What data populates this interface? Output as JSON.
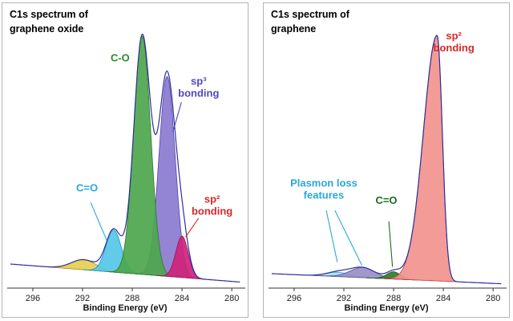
{
  "figure": {
    "background": "#ffffff",
    "border_color": "#b5b5b5"
  },
  "chart_data": [
    {
      "type": "area",
      "title": "C1s spectrum of graphene oxide",
      "xlabel": "Binding Energy (eV)",
      "x_ticks": [
        296,
        292,
        288,
        284,
        280
      ],
      "x_range": [
        297.8,
        279.3
      ],
      "x_reversed": true,
      "ylim": [
        0,
        1.1
      ],
      "grid": false,
      "envelope_color": "#2b2f9e",
      "baseline": {
        "left": 0.09,
        "right": 0.015
      },
      "peaks": [
        {
          "name": "satellite",
          "center": 291.9,
          "amp": 0.042,
          "sigma": 1.0,
          "fill": "#e7cf4f",
          "stroke": "#a08a20"
        },
        {
          "name": "C=O",
          "center": 289.5,
          "amp": 0.175,
          "sigma": 0.62,
          "fill": "#56c7e8",
          "stroke": "#1f93bd"
        },
        {
          "name": "sp3 bonding",
          "center": 285.2,
          "amp": 0.83,
          "sigma": 0.65,
          "fill": "#8a7bd0",
          "stroke": "#5347ad"
        },
        {
          "name": "C-O",
          "center": 287.2,
          "amp": 0.99,
          "sigma": 0.68,
          "fill": "#4da64d",
          "stroke": "#2d7a2d"
        },
        {
          "name": "sp2 bonding",
          "center": 284.0,
          "amp": 0.172,
          "sigma": 0.5,
          "fill": "#cf2379",
          "stroke": "#9c145a"
        }
      ],
      "annotations": [
        {
          "lines": [
            "C-O"
          ],
          "color": "#2e8b2e",
          "fx": 0.48,
          "fy": 0.185,
          "pointers": []
        },
        {
          "lines": [
            "sp³",
            "bonding"
          ],
          "color": "#5248b8",
          "fx": 0.8,
          "fy": 0.26,
          "pointers": [
            {
              "x1": 0.73,
              "y1": 0.315,
              "x2": 0.695,
              "y2": 0.41
            }
          ]
        },
        {
          "lines": [
            "C=O"
          ],
          "color": "#2aa8d8",
          "fx": 0.345,
          "fy": 0.6,
          "pointers": [
            {
              "x1": 0.36,
              "y1": 0.635,
              "x2": 0.425,
              "y2": 0.755
            }
          ]
        },
        {
          "lines": [
            "sp²",
            "bonding"
          ],
          "color": "#d62828",
          "fx": 0.855,
          "fy": 0.635,
          "pointers": [
            {
              "x1": 0.8,
              "y1": 0.685,
              "x2": 0.747,
              "y2": 0.745
            }
          ]
        }
      ]
    },
    {
      "type": "area",
      "title": "C1s spectrum of graphene",
      "xlabel": "Binding Energy (eV)",
      "x_ticks": [
        296,
        292,
        288,
        284,
        280
      ],
      "x_range": [
        297.8,
        279.3
      ],
      "x_reversed": true,
      "ylim": [
        0,
        1.1
      ],
      "grid": false,
      "envelope_color": "#2b2f9e",
      "baseline": {
        "left": 0.05,
        "right": 0.008
      },
      "peaks": [
        {
          "name": "plasmon loss 2",
          "center": 292.5,
          "amp": 0.018,
          "sigma": 0.9,
          "fill": "#a9dff0",
          "stroke": "#2aa8cc"
        },
        {
          "name": "plasmon loss 1",
          "center": 290.5,
          "amp": 0.042,
          "sigma": 1.0,
          "fill": "#9b8ec4",
          "stroke": "#5a4fa0"
        },
        {
          "name": "C=O",
          "center": 288.0,
          "amp": 0.03,
          "sigma": 0.55,
          "fill": "#2e7d32",
          "stroke": "#1b5e20"
        },
        {
          "name": "sp2 bonding",
          "center": 284.5,
          "amp": 1.02,
          "sigma": 0.42,
          "sigma_left": 1.1,
          "sigma_right": 0.42,
          "fill": "#f2938d",
          "stroke": "#c23b35"
        }
      ],
      "annotations": [
        {
          "lines": [
            "sp²",
            "bonding"
          ],
          "color": "#d62828",
          "fx": 0.775,
          "fy": 0.115,
          "pointers": []
        },
        {
          "lines": [
            "Plasmon loss",
            "features"
          ],
          "color": "#2aa8d8",
          "fx": 0.245,
          "fy": 0.585,
          "pointers": [
            {
              "x1": 0.255,
              "y1": 0.66,
              "x2": 0.3,
              "y2": 0.825
            },
            {
              "x1": 0.29,
              "y1": 0.66,
              "x2": 0.4,
              "y2": 0.835
            }
          ]
        },
        {
          "lines": [
            "C=O"
          ],
          "color": "#1b6e1b",
          "fx": 0.5,
          "fy": 0.64,
          "pointers": [
            {
              "x1": 0.51,
              "y1": 0.695,
              "x2": 0.525,
              "y2": 0.84
            }
          ]
        }
      ]
    }
  ]
}
